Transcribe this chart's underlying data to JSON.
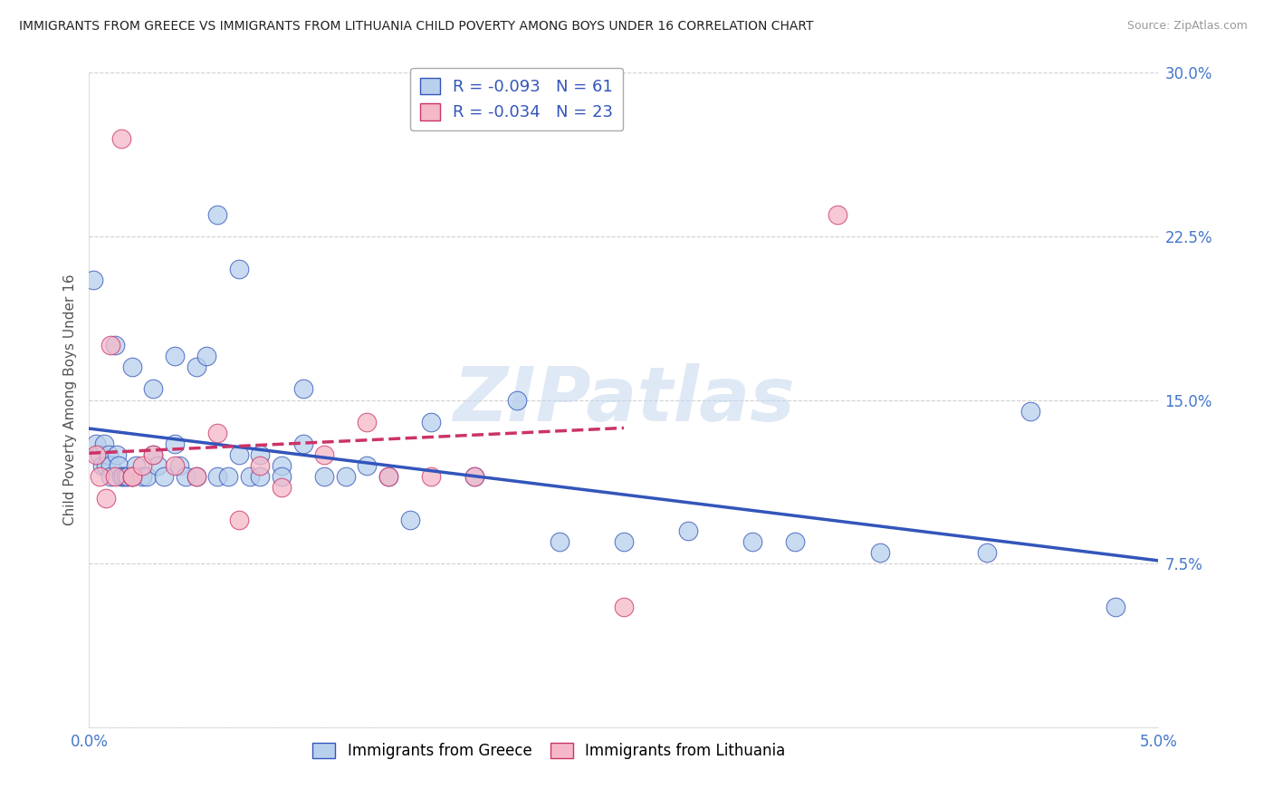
{
  "title": "IMMIGRANTS FROM GREECE VS IMMIGRANTS FROM LITHUANIA CHILD POVERTY AMONG BOYS UNDER 16 CORRELATION CHART",
  "source": "Source: ZipAtlas.com",
  "ylabel": "Child Poverty Among Boys Under 16",
  "xlim": [
    0.0,
    0.05
  ],
  "ylim": [
    0.0,
    0.3
  ],
  "xtick_vals": [
    0.0,
    0.01,
    0.02,
    0.03,
    0.04,
    0.05
  ],
  "xticklabels": [
    "0.0%",
    "",
    "",
    "",
    "",
    "5.0%"
  ],
  "ytick_vals": [
    0.0,
    0.075,
    0.15,
    0.225,
    0.3
  ],
  "yticklabels": [
    "",
    "7.5%",
    "15.0%",
    "22.5%",
    "30.0%"
  ],
  "background_color": "#ffffff",
  "grid_color": "#d0d0d0",
  "watermark_text": "ZIPatlas",
  "legend_R1": "-0.093",
  "legend_N1": "61",
  "legend_R2": "-0.034",
  "legend_N2": "23",
  "blue_face": "#b8d0ec",
  "pink_face": "#f5b8c8",
  "line_blue": "#3355bb",
  "line_pink": "#cc3366",
  "tick_color": "#4477cc",
  "greece_x": [
    0.0002,
    0.0003,
    0.0005,
    0.0006,
    0.0007,
    0.0008,
    0.0009,
    0.001,
    0.001,
    0.0012,
    0.0013,
    0.0014,
    0.0015,
    0.0016,
    0.0017,
    0.0018,
    0.002,
    0.002,
    0.0022,
    0.0025,
    0.0027,
    0.003,
    0.003,
    0.0032,
    0.0035,
    0.004,
    0.004,
    0.0042,
    0.0045,
    0.005,
    0.005,
    0.0055,
    0.006,
    0.006,
    0.0065,
    0.007,
    0.007,
    0.0075,
    0.008,
    0.008,
    0.009,
    0.009,
    0.01,
    0.01,
    0.011,
    0.012,
    0.013,
    0.014,
    0.015,
    0.016,
    0.018,
    0.02,
    0.022,
    0.025,
    0.028,
    0.031,
    0.033,
    0.037,
    0.042,
    0.044,
    0.048
  ],
  "greece_y": [
    0.205,
    0.13,
    0.125,
    0.12,
    0.13,
    0.12,
    0.125,
    0.12,
    0.115,
    0.175,
    0.125,
    0.12,
    0.115,
    0.115,
    0.115,
    0.115,
    0.165,
    0.115,
    0.12,
    0.115,
    0.115,
    0.155,
    0.125,
    0.12,
    0.115,
    0.17,
    0.13,
    0.12,
    0.115,
    0.165,
    0.115,
    0.17,
    0.235,
    0.115,
    0.115,
    0.21,
    0.125,
    0.115,
    0.125,
    0.115,
    0.12,
    0.115,
    0.155,
    0.13,
    0.115,
    0.115,
    0.12,
    0.115,
    0.095,
    0.14,
    0.115,
    0.15,
    0.085,
    0.085,
    0.09,
    0.085,
    0.085,
    0.08,
    0.08,
    0.145,
    0.055
  ],
  "lithuania_x": [
    0.0003,
    0.0005,
    0.0008,
    0.001,
    0.0012,
    0.0015,
    0.002,
    0.002,
    0.0025,
    0.003,
    0.004,
    0.005,
    0.006,
    0.007,
    0.008,
    0.009,
    0.011,
    0.013,
    0.014,
    0.016,
    0.018,
    0.025,
    0.035
  ],
  "lithuania_y": [
    0.125,
    0.115,
    0.105,
    0.175,
    0.115,
    0.27,
    0.115,
    0.115,
    0.12,
    0.125,
    0.12,
    0.115,
    0.135,
    0.095,
    0.12,
    0.11,
    0.125,
    0.14,
    0.115,
    0.115,
    0.115,
    0.055,
    0.235
  ]
}
